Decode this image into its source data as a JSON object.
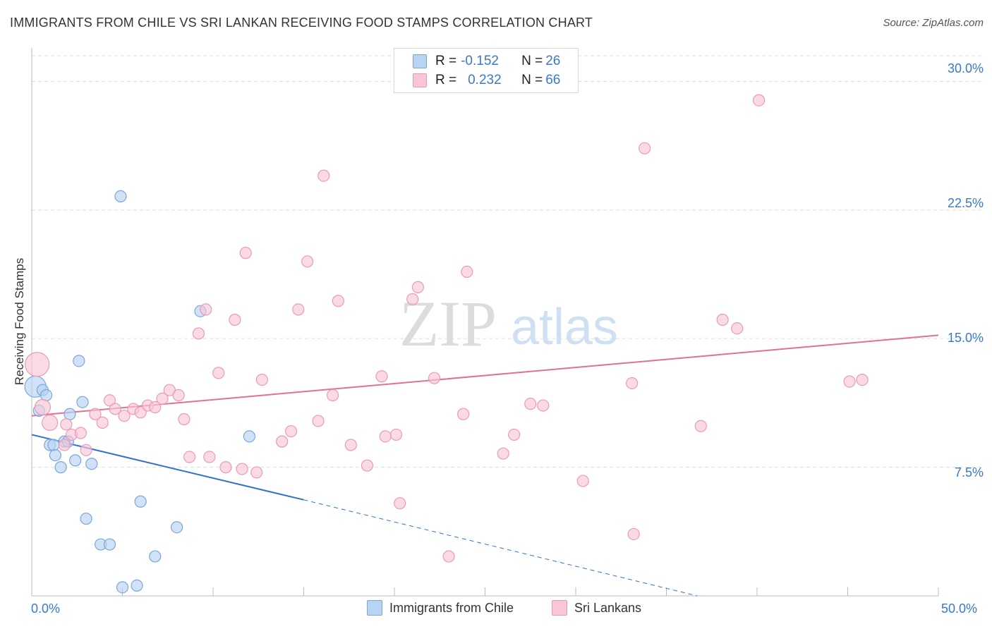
{
  "title": "IMMIGRANTS FROM CHILE VS SRI LANKAN RECEIVING FOOD STAMPS CORRELATION CHART",
  "source": "Source: ZipAtlas.com",
  "watermark": {
    "zip": "ZIP",
    "atlas": "atlas"
  },
  "colors": {
    "blue_fill": "#b9d3f2",
    "blue_stroke": "#7aa6dc",
    "blue_line": "#2f72cc",
    "pink_fill": "#f8c6d6",
    "pink_stroke": "#eb9ab5",
    "pink_line": "#e0709a",
    "tick_text": "#3a78c9",
    "grid": "#dddddd"
  },
  "legend": {
    "rows": [
      {
        "r_label": "R = ",
        "r_value": "-0.152",
        "n_label": "N = ",
        "n_value": "26",
        "color": "blue"
      },
      {
        "r_label": "R = ",
        "r_value": "0.232",
        "n_label": "N = ",
        "n_value": "66",
        "color": "pink"
      }
    ]
  },
  "chart_data": {
    "type": "scatter",
    "title": "IMMIGRANTS FROM CHILE VS SRI LANKAN RECEIVING FOOD STAMPS CORRELATION CHART",
    "xlabel": "",
    "ylabel": "Receiving Food Stamps",
    "xlim": [
      0,
      50
    ],
    "ylim": [
      0,
      31.5
    ],
    "x_tick_labels": [
      "0.0%",
      "50.0%"
    ],
    "y_ticks": [
      7.5,
      15.0,
      22.5,
      30.0
    ],
    "y_tick_labels": [
      "7.5%",
      "15.0%",
      "22.5%",
      "30.0%"
    ],
    "grid": true,
    "legend_position": "bottom",
    "series": [
      {
        "name": "Immigrants from Chile",
        "color": "blue",
        "points": [
          [
            0.2,
            12.2
          ],
          [
            0.4,
            10.8
          ],
          [
            0.6,
            12.0
          ],
          [
            0.8,
            11.7
          ],
          [
            1.0,
            8.8
          ],
          [
            1.2,
            8.8
          ],
          [
            1.3,
            8.2
          ],
          [
            1.6,
            7.5
          ],
          [
            1.8,
            9.0
          ],
          [
            2.0,
            9.0
          ],
          [
            2.1,
            10.6
          ],
          [
            2.4,
            7.9
          ],
          [
            2.6,
            13.7
          ],
          [
            2.8,
            11.3
          ],
          [
            3.0,
            4.5
          ],
          [
            3.3,
            7.7
          ],
          [
            3.8,
            3.0
          ],
          [
            4.3,
            3.0
          ],
          [
            4.9,
            23.3
          ],
          [
            5.0,
            0.5
          ],
          [
            5.8,
            0.6
          ],
          [
            6.0,
            5.5
          ],
          [
            6.8,
            2.3
          ],
          [
            8.0,
            4.0
          ],
          [
            9.3,
            16.6
          ],
          [
            12.0,
            9.3
          ]
        ],
        "trend": {
          "x1": 0,
          "y1": 9.4,
          "x2": 15,
          "y2": 5.6,
          "dashed_to_x": 36.7,
          "dashed_to_y": 0.0
        }
      },
      {
        "name": "Sri Lankans",
        "color": "pink",
        "points": [
          [
            0.3,
            13.5
          ],
          [
            0.6,
            11.0
          ],
          [
            1.0,
            10.1
          ],
          [
            1.8,
            8.8
          ],
          [
            1.9,
            10.0
          ],
          [
            2.2,
            9.4
          ],
          [
            2.7,
            9.5
          ],
          [
            3.0,
            8.5
          ],
          [
            3.5,
            10.6
          ],
          [
            3.9,
            10.1
          ],
          [
            4.3,
            11.4
          ],
          [
            4.6,
            10.9
          ],
          [
            5.1,
            10.5
          ],
          [
            5.6,
            10.9
          ],
          [
            6.0,
            10.7
          ],
          [
            6.4,
            11.1
          ],
          [
            6.8,
            11.0
          ],
          [
            7.2,
            11.5
          ],
          [
            7.6,
            12.0
          ],
          [
            8.1,
            11.7
          ],
          [
            8.4,
            10.3
          ],
          [
            8.7,
            8.1
          ],
          [
            9.2,
            15.3
          ],
          [
            9.8,
            8.1
          ],
          [
            9.6,
            16.7
          ],
          [
            10.3,
            13.0
          ],
          [
            10.7,
            7.5
          ],
          [
            11.2,
            16.1
          ],
          [
            11.6,
            7.4
          ],
          [
            11.8,
            20.0
          ],
          [
            12.4,
            7.2
          ],
          [
            12.7,
            12.6
          ],
          [
            13.8,
            9.0
          ],
          [
            14.3,
            9.6
          ],
          [
            14.7,
            16.7
          ],
          [
            15.2,
            19.5
          ],
          [
            15.8,
            10.2
          ],
          [
            16.1,
            24.5
          ],
          [
            16.6,
            11.7
          ],
          [
            16.9,
            17.2
          ],
          [
            17.6,
            8.8
          ],
          [
            18.5,
            7.6
          ],
          [
            19.3,
            12.8
          ],
          [
            19.5,
            9.3
          ],
          [
            20.1,
            9.4
          ],
          [
            20.3,
            5.4
          ],
          [
            21.0,
            17.3
          ],
          [
            21.3,
            18.0
          ],
          [
            22.2,
            12.7
          ],
          [
            23.0,
            2.3
          ],
          [
            23.8,
            10.6
          ],
          [
            24.0,
            18.9
          ],
          [
            26.0,
            8.3
          ],
          [
            26.6,
            9.4
          ],
          [
            27.5,
            11.2
          ],
          [
            28.2,
            11.1
          ],
          [
            30.4,
            6.7
          ],
          [
            33.1,
            12.4
          ],
          [
            33.2,
            3.6
          ],
          [
            33.8,
            26.1
          ],
          [
            36.9,
            9.9
          ],
          [
            38.1,
            16.1
          ],
          [
            38.9,
            15.6
          ],
          [
            40.1,
            28.9
          ],
          [
            45.1,
            12.5
          ],
          [
            45.8,
            12.6
          ]
        ],
        "trend": {
          "x1": 0,
          "y1": 10.5,
          "x2": 50,
          "y2": 15.2
        }
      }
    ]
  }
}
